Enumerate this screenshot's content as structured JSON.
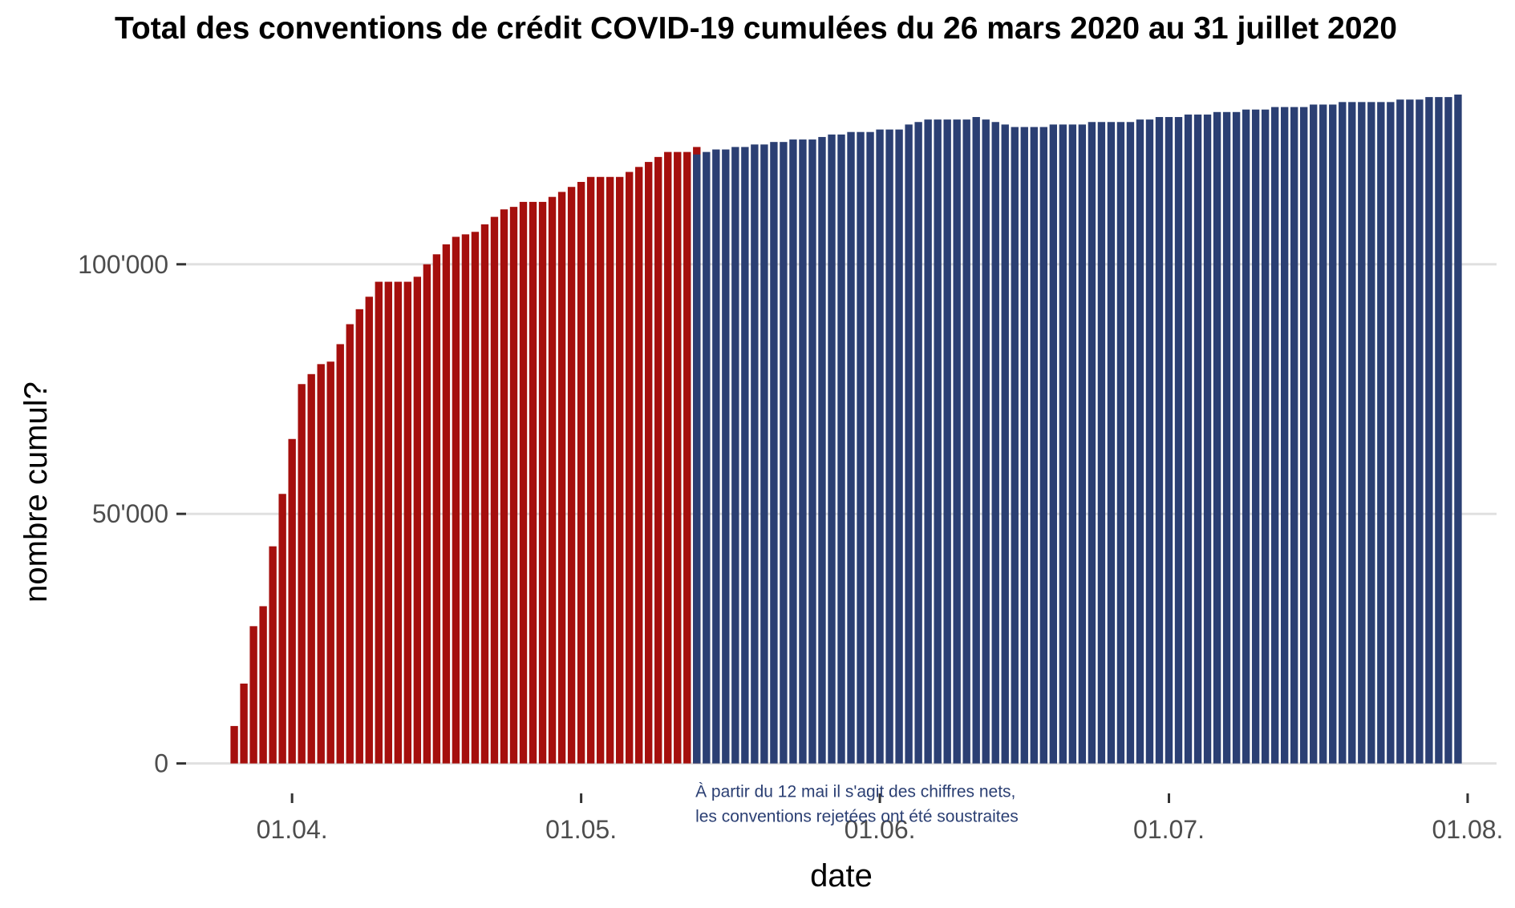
{
  "chart_data": {
    "type": "bar",
    "title": "Total des conventions de crédit COVID-19 cumulées du 26 mars 2020 au 31 juillet 2020",
    "xlabel": "date",
    "ylabel": "nombre cumul?",
    "x_start": "2020-03-26",
    "x_end": "2020-07-31",
    "xlim": [
      "2020-03-21",
      "2020-08-04"
    ],
    "ylim": [
      -6000,
      134000
    ],
    "y_ticks": [
      0,
      50000,
      100000
    ],
    "y_tick_labels": [
      "0",
      "50'000",
      "100'000"
    ],
    "x_ticks": [
      "2020-04-01",
      "2020-05-01",
      "2020-06-01",
      "2020-07-01",
      "2020-08-01"
    ],
    "x_tick_labels": [
      "01.04.",
      "01.05.",
      "01.06.",
      "01.07.",
      "01.08."
    ],
    "grid": "horizontal",
    "series": [
      {
        "color": "#a50f0d",
        "x_start": "2020-03-26",
        "values": [
          7500,
          16000,
          27500,
          31500,
          43500,
          54000,
          65000,
          76000,
          78000,
          80000,
          80500,
          84000,
          88000,
          91000,
          93500,
          96500,
          96500,
          96500,
          96500,
          97500,
          100000,
          102000,
          104000,
          105500,
          106000,
          106500,
          108000,
          109500,
          111000,
          111500,
          112500,
          112500,
          112500,
          113500,
          114500,
          115500,
          116500,
          117500,
          117500,
          117500,
          117500,
          118500,
          119500,
          120500,
          121500,
          122500,
          122500,
          122500,
          123500
        ]
      },
      {
        "color": "#2b3f73",
        "x_start": "2020-05-13",
        "values": [
          122000,
          122500,
          123000,
          123000,
          123500,
          123500,
          124000,
          124000,
          124500,
          124500,
          125000,
          125000,
          125000,
          125500,
          126000,
          126000,
          126500,
          126500,
          126500,
          127000,
          127000,
          127000,
          128000,
          128500,
          129000,
          129000,
          129000,
          129000,
          129000,
          129500,
          129000,
          128500,
          128000,
          127500,
          127500,
          127500,
          127500,
          128000,
          128000,
          128000,
          128000,
          128500,
          128500,
          128500,
          128500,
          128500,
          129000,
          129000,
          129500,
          129500,
          129500,
          130000,
          130000,
          130000,
          130500,
          130500,
          130500,
          131000,
          131000,
          131000,
          131500,
          131500,
          131500,
          131500,
          132000,
          132000,
          132000,
          132500,
          132500,
          132500,
          132500,
          132500,
          132500,
          133000,
          133000,
          133000,
          133500,
          133500,
          133500,
          134000
        ]
      }
    ],
    "annotation": {
      "lines": [
        "À partir du 12 mai il s'agit des chiffres nets,",
        "les conventions rejetées ont été soustraites"
      ]
    }
  }
}
